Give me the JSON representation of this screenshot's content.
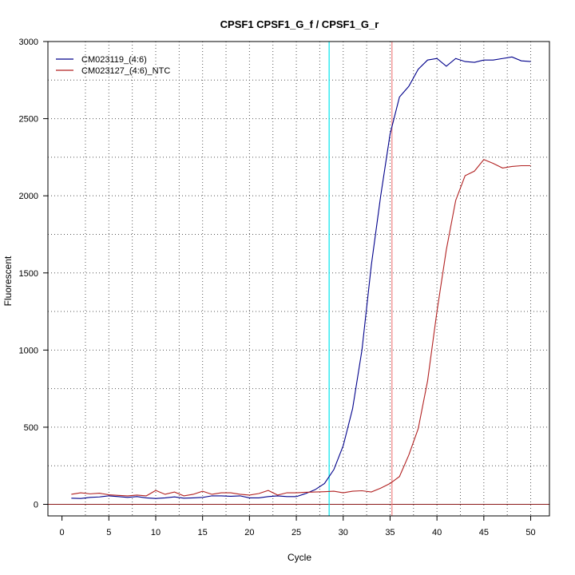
{
  "chart_data": {
    "type": "line",
    "title": "CPSF1  CPSF1_G_f / CPSF1_G_r",
    "xlabel": "Cycle",
    "ylabel": "Fluorescent",
    "xlim": [
      -1.5,
      52
    ],
    "ylim": [
      -75,
      3000
    ],
    "x_ticks": [
      0,
      5,
      10,
      15,
      20,
      25,
      30,
      35,
      40,
      45,
      50
    ],
    "y_ticks": [
      0,
      500,
      1000,
      1500,
      2000,
      2500,
      3000
    ],
    "grid": true,
    "legend_position": "top-left",
    "x": [
      1,
      2,
      3,
      4,
      5,
      6,
      7,
      8,
      9,
      10,
      11,
      12,
      13,
      14,
      15,
      16,
      17,
      18,
      19,
      20,
      21,
      22,
      23,
      24,
      25,
      26,
      27,
      28,
      29,
      30,
      31,
      32,
      33,
      34,
      35,
      36,
      37,
      38,
      39,
      40,
      41,
      42,
      43,
      44,
      45,
      46,
      47,
      48,
      49,
      50
    ],
    "series": [
      {
        "name": "CM023119_(4:6)",
        "color": "#00008b",
        "values": [
          40,
          38,
          45,
          48,
          55,
          50,
          45,
          50,
          42,
          38,
          42,
          48,
          40,
          42,
          45,
          55,
          55,
          52,
          55,
          42,
          42,
          50,
          55,
          50,
          50,
          70,
          95,
          135,
          225,
          380,
          620,
          1000,
          1550,
          2000,
          2400,
          2640,
          2710,
          2820,
          2880,
          2890,
          2840,
          2890,
          2870,
          2865,
          2880,
          2880,
          2890,
          2900,
          2875,
          2870
        ]
      },
      {
        "name": "CM023127_(4:6)_NTC",
        "color": "#b22222",
        "values": [
          65,
          75,
          68,
          72,
          62,
          58,
          55,
          60,
          55,
          90,
          65,
          80,
          55,
          65,
          85,
          65,
          75,
          75,
          65,
          60,
          70,
          90,
          60,
          75,
          75,
          78,
          80,
          82,
          85,
          75,
          85,
          88,
          80,
          105,
          135,
          180,
          320,
          490,
          800,
          1250,
          1650,
          1970,
          2130,
          2160,
          2235,
          2210,
          2180,
          2190,
          2195,
          2195
        ]
      }
    ],
    "vertical_lines": [
      {
        "x": 28.5,
        "color": "#00e5ee"
      },
      {
        "x": 35.2,
        "color": "#f08080"
      }
    ],
    "horizontal_line": {
      "y": 0,
      "color": "#8b1a1a"
    }
  }
}
